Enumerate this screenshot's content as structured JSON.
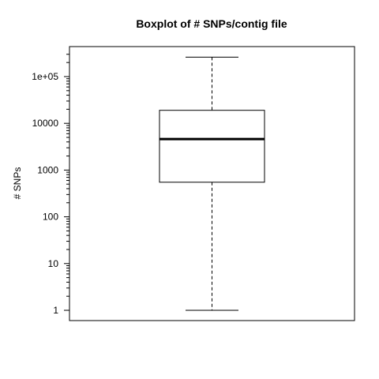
{
  "chart_data": {
    "type": "box",
    "title": "Boxplot of # SNPs/contig file",
    "xlabel": "",
    "ylabel": "# SNPs",
    "yscale": "log10",
    "ylim": [
      0.6,
      420000
    ],
    "y_ticks": [
      {
        "value": 1,
        "label": "1"
      },
      {
        "value": 10,
        "label": "10"
      },
      {
        "value": 100,
        "label": "100"
      },
      {
        "value": 1000,
        "label": "1000"
      },
      {
        "value": 10000,
        "label": "10000"
      },
      {
        "value": 100000,
        "label": "1e+05"
      }
    ],
    "box": {
      "min": 1,
      "q1": 550,
      "median": 4600,
      "q3": 19000,
      "max": 260000
    },
    "grid": false,
    "legend": "none"
  }
}
